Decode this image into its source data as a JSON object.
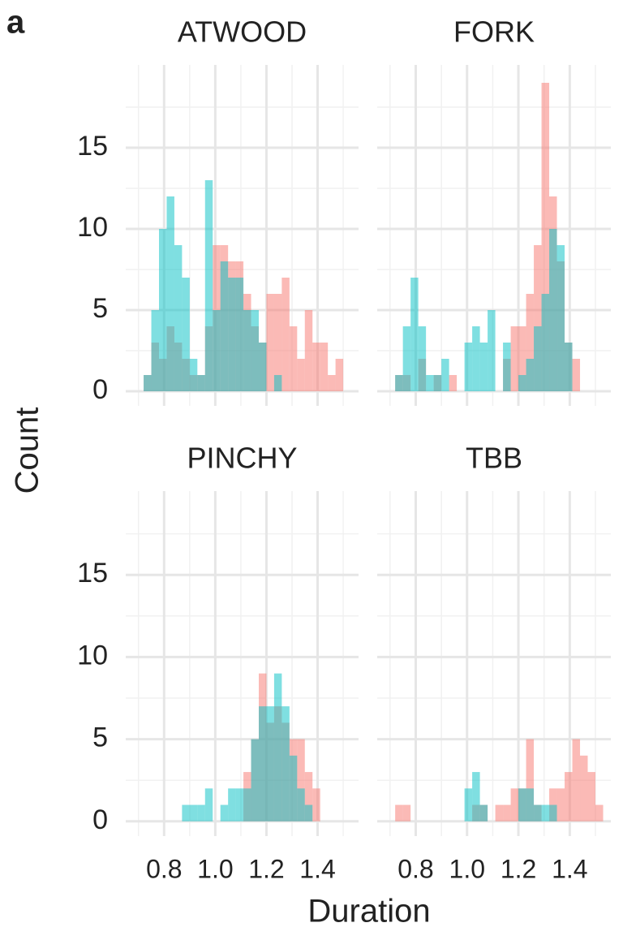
{
  "panel_label": "a",
  "xlabel": "Duration",
  "ylabel": "Count",
  "chart_data": [
    {
      "type": "histogram",
      "title": "ATWOOD",
      "bins": [
        0.72,
        0.75,
        0.78,
        0.81,
        0.84,
        0.87,
        0.9,
        0.93,
        0.96,
        0.99,
        1.02,
        1.05,
        1.08,
        1.11,
        1.14,
        1.17,
        1.2,
        1.23,
        1.26,
        1.29,
        1.32,
        1.35,
        1.38,
        1.41,
        1.44,
        1.47,
        1.5,
        1.53
      ],
      "series": [
        {
          "color": "#F8766D",
          "values": [
            1,
            3,
            2,
            4,
            3,
            2,
            1,
            1,
            4,
            9,
            9,
            8,
            8,
            6,
            4,
            3,
            6,
            6,
            7,
            4,
            2,
            5,
            3,
            3,
            1,
            2,
            0
          ]
        },
        {
          "color": "#00BFC4",
          "values": [
            1,
            5,
            10,
            12,
            9,
            7,
            2,
            1,
            13,
            5,
            8,
            7,
            7,
            5,
            5,
            3,
            0,
            1,
            0,
            0,
            0,
            0,
            0,
            0,
            0,
            0,
            0
          ]
        }
      ],
      "xlim": [
        0.65,
        1.56
      ],
      "ylim": [
        -0.9,
        20.1
      ],
      "xticks": [
        0.8,
        {
          "value": 1,
          "label": "1.0"
        },
        1.2,
        1.4
      ],
      "yticks": [
        0,
        5,
        10,
        15
      ],
      "xminor": [
        0.7,
        0.9,
        1.1,
        1.3,
        1.5
      ],
      "yminor": [
        2.5,
        7.5,
        12.5,
        17.5
      ],
      "grid": true
    },
    {
      "type": "histogram",
      "title": "FORK",
      "bins": [
        0.72,
        0.75,
        0.78,
        0.81,
        0.84,
        0.87,
        0.9,
        0.93,
        0.96,
        0.99,
        1.02,
        1.05,
        1.08,
        1.11,
        1.14,
        1.17,
        1.2,
        1.23,
        1.26,
        1.29,
        1.32,
        1.35,
        1.38,
        1.41,
        1.44,
        1.47,
        1.5,
        1.53
      ],
      "series": [
        {
          "color": "#F8766D",
          "values": [
            1,
            1,
            0,
            2,
            0,
            1,
            0,
            1,
            0,
            0,
            0,
            0,
            0,
            0,
            2,
            4,
            4,
            6,
            9,
            19,
            12,
            8,
            3,
            2,
            0,
            0,
            0
          ]
        },
        {
          "color": "#00BFC4",
          "values": [
            1,
            4,
            7,
            4,
            1,
            1,
            2,
            0,
            0,
            3,
            4,
            3,
            5,
            0,
            3,
            0,
            1,
            2,
            4,
            6,
            10,
            9,
            3,
            0,
            0,
            0,
            0
          ]
        }
      ],
      "xlim": [
        0.65,
        1.56
      ],
      "ylim": [
        -0.9,
        20.1
      ],
      "xticks": [
        0.8,
        {
          "value": 1,
          "label": "1.0"
        },
        1.2,
        1.4
      ],
      "yticks": [
        0,
        5,
        10,
        15
      ],
      "xminor": [
        0.7,
        0.9,
        1.1,
        1.3,
        1.5
      ],
      "yminor": [
        2.5,
        7.5,
        12.5,
        17.5
      ],
      "grid": true
    },
    {
      "type": "histogram",
      "title": "PINCHY",
      "bins": [
        0.72,
        0.75,
        0.78,
        0.81,
        0.84,
        0.87,
        0.9,
        0.93,
        0.96,
        0.99,
        1.02,
        1.05,
        1.08,
        1.11,
        1.14,
        1.17,
        1.2,
        1.23,
        1.26,
        1.29,
        1.32,
        1.35,
        1.38,
        1.41,
        1.44,
        1.47,
        1.5,
        1.53
      ],
      "series": [
        {
          "color": "#F8766D",
          "values": [
            0,
            0,
            0,
            0,
            0,
            0,
            0,
            0,
            0,
            0,
            0,
            0,
            0,
            3,
            5,
            9,
            6,
            7,
            6,
            5,
            5,
            3,
            2,
            0,
            0,
            0,
            0
          ]
        },
        {
          "color": "#00BFC4",
          "values": [
            0,
            0,
            0,
            0,
            0,
            1,
            1,
            1,
            2,
            0,
            1,
            2,
            2,
            2,
            5,
            7,
            7,
            9,
            7,
            4,
            2,
            1,
            0,
            0,
            0,
            0,
            0
          ]
        }
      ],
      "xlim": [
        0.65,
        1.56
      ],
      "ylim": [
        -0.9,
        20.1
      ],
      "xticks": [
        0.8,
        {
          "value": 1,
          "label": "1.0"
        },
        1.2,
        1.4
      ],
      "yticks": [
        0,
        5,
        10,
        15
      ],
      "xminor": [
        0.7,
        0.9,
        1.1,
        1.3,
        1.5
      ],
      "yminor": [
        2.5,
        7.5,
        12.5,
        17.5
      ],
      "grid": true
    },
    {
      "type": "histogram",
      "title": "TBB",
      "bins": [
        0.72,
        0.75,
        0.78,
        0.81,
        0.84,
        0.87,
        0.9,
        0.93,
        0.96,
        0.99,
        1.02,
        1.05,
        1.08,
        1.11,
        1.14,
        1.17,
        1.2,
        1.23,
        1.26,
        1.29,
        1.32,
        1.35,
        1.38,
        1.41,
        1.44,
        1.47,
        1.5,
        1.53
      ],
      "series": [
        {
          "color": "#F8766D",
          "values": [
            1,
            1,
            0,
            0,
            0,
            0,
            0,
            0,
            0,
            0,
            1,
            1,
            0,
            1,
            1,
            2,
            2,
            5,
            1,
            0,
            2,
            2,
            3,
            5,
            4,
            3,
            1
          ]
        },
        {
          "color": "#00BFC4",
          "values": [
            0,
            0,
            0,
            0,
            0,
            0,
            0,
            0,
            0,
            2,
            3,
            1,
            0,
            0,
            0,
            0,
            2,
            2,
            1,
            1,
            1,
            0,
            0,
            0,
            0,
            0,
            0
          ]
        }
      ],
      "xlim": [
        0.65,
        1.56
      ],
      "ylim": [
        -0.9,
        20.1
      ],
      "xticks": [
        0.8,
        {
          "value": 1,
          "label": "1.0"
        },
        1.2,
        1.4
      ],
      "yticks": [
        0,
        5,
        10,
        15
      ],
      "xminor": [
        0.7,
        0.9,
        1.1,
        1.3,
        1.5
      ],
      "yminor": [
        2.5,
        7.5,
        12.5,
        17.5
      ],
      "grid": true
    }
  ]
}
